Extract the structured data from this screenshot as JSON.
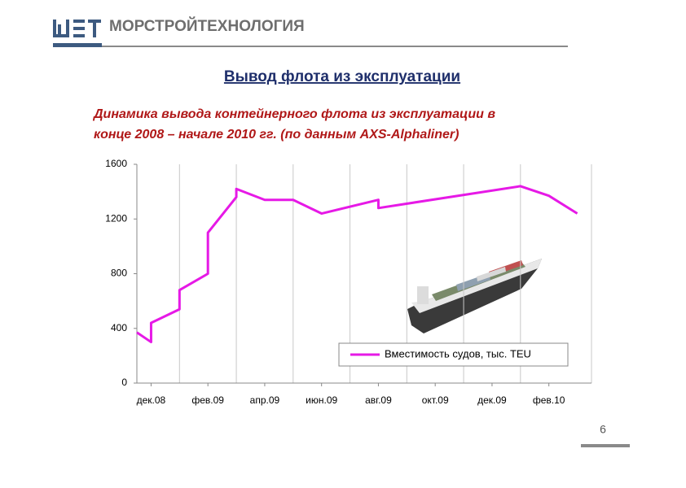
{
  "header": {
    "company": "МОРСТРОЙТЕХНОЛОГИЯ"
  },
  "slide_title": "Вывод флота из эксплуатации",
  "page_number": "6",
  "chart_data": {
    "type": "line",
    "title": [
      "Динамика вывода контейнерного флота из эксплуатации в",
      "конце 2008 – начале 2010 гг. (по данным AXS-Alphaliner)"
    ],
    "x": [
      -0.5,
      0,
      0,
      1,
      1,
      2,
      2,
      3,
      3,
      4,
      5,
      6,
      8,
      8,
      13,
      14,
      15
    ],
    "series": [
      {
        "name": "Вместимость судов, тыс. TEU",
        "color": "#e619e6",
        "values": [
          370,
          300,
          440,
          540,
          680,
          800,
          1100,
          1360,
          1420,
          1340,
          1340,
          1240,
          1340,
          1280,
          1440,
          1370,
          1240
        ]
      }
    ],
    "xlim": [
      -0.5,
      15.5
    ],
    "xticks": [
      {
        "value": 0,
        "label": "дек.08"
      },
      {
        "value": 2,
        "label": "фев.09"
      },
      {
        "value": 4,
        "label": "апр.09"
      },
      {
        "value": 6,
        "label": "июн.09"
      },
      {
        "value": 8,
        "label": "авг.09"
      },
      {
        "value": 10,
        "label": "окт.09"
      },
      {
        "value": 12,
        "label": "дек.09"
      },
      {
        "value": 14,
        "label": "фев.10"
      }
    ],
    "ylim": [
      0,
      1600
    ],
    "yticks": [
      0,
      400,
      800,
      1200,
      1600
    ],
    "grid": "x"
  }
}
